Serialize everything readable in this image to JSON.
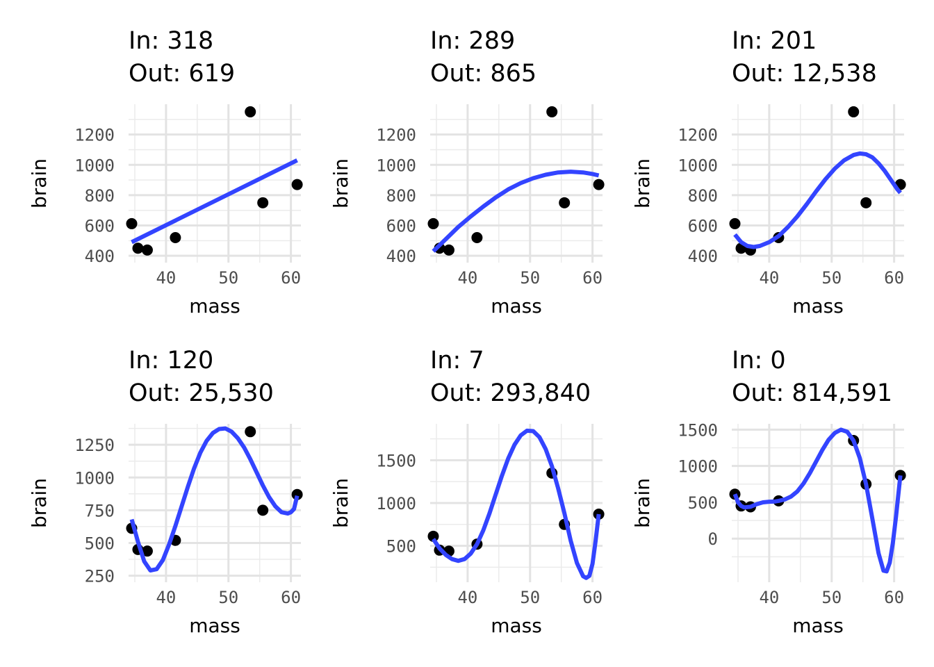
{
  "chart_data": [
    {
      "type": "scatter",
      "title_line1": "In: 318",
      "title_line2": "Out: 619",
      "xlabel": "mass",
      "ylabel": "brain",
      "xlim": [
        34,
        61.6
      ],
      "ylim": [
        355,
        1400
      ],
      "x_ticks": [
        40,
        50,
        60
      ],
      "x_tick_labels": [
        "40",
        "50",
        "60"
      ],
      "y_ticks": [
        400,
        600,
        800,
        1000,
        1200
      ],
      "y_tick_labels": [
        "400",
        "600",
        "800",
        "1000",
        "1200"
      ],
      "grid": true,
      "points": [
        [
          34.5,
          612
        ],
        [
          35.5,
          450
        ],
        [
          37.0,
          438
        ],
        [
          41.5,
          520
        ],
        [
          53.5,
          1350
        ],
        [
          55.5,
          750
        ],
        [
          61.0,
          870
        ]
      ],
      "fit_degree": 1,
      "fit_curve": [
        [
          34.5,
          490
        ],
        [
          61.0,
          1030
        ]
      ]
    },
    {
      "type": "scatter",
      "title_line1": "In: 289",
      "title_line2": "Out: 865",
      "xlabel": "mass",
      "ylabel": "brain",
      "xlim": [
        34,
        61.6
      ],
      "ylim": [
        355,
        1400
      ],
      "x_ticks": [
        40,
        50,
        60
      ],
      "x_tick_labels": [
        "40",
        "50",
        "60"
      ],
      "y_ticks": [
        400,
        600,
        800,
        1000,
        1200
      ],
      "y_tick_labels": [
        "400",
        "600",
        "800",
        "1000",
        "1200"
      ],
      "grid": true,
      "points": [
        [
          34.5,
          612
        ],
        [
          35.5,
          450
        ],
        [
          37.0,
          438
        ],
        [
          41.5,
          520
        ],
        [
          53.5,
          1350
        ],
        [
          55.5,
          750
        ],
        [
          61.0,
          870
        ]
      ],
      "fit_degree": 2,
      "fit_curve": [
        [
          34.5,
          430
        ],
        [
          36.5,
          510
        ],
        [
          38.5,
          590
        ],
        [
          40.5,
          660
        ],
        [
          42.5,
          725
        ],
        [
          44.5,
          785
        ],
        [
          46.5,
          838
        ],
        [
          48.5,
          880
        ],
        [
          50.5,
          912
        ],
        [
          52.5,
          935
        ],
        [
          54.5,
          950
        ],
        [
          56.5,
          955
        ],
        [
          58.5,
          950
        ],
        [
          60.0,
          940
        ],
        [
          61.0,
          930
        ]
      ]
    },
    {
      "type": "scatter",
      "title_line1": "In: 201",
      "title_line2": "Out: 12,538",
      "xlabel": "mass",
      "ylabel": "brain",
      "xlim": [
        34,
        61.6
      ],
      "ylim": [
        355,
        1400
      ],
      "x_ticks": [
        40,
        50,
        60
      ],
      "x_tick_labels": [
        "40",
        "50",
        "60"
      ],
      "y_ticks": [
        400,
        600,
        800,
        1000,
        1200
      ],
      "y_tick_labels": [
        "400",
        "600",
        "800",
        "1000",
        "1200"
      ],
      "grid": true,
      "points": [
        [
          34.5,
          612
        ],
        [
          35.5,
          450
        ],
        [
          37.0,
          438
        ],
        [
          41.5,
          520
        ],
        [
          53.5,
          1350
        ],
        [
          55.5,
          750
        ],
        [
          61.0,
          870
        ]
      ],
      "fit_degree": 3,
      "fit_curve": [
        [
          34.5,
          540
        ],
        [
          35.5,
          490
        ],
        [
          36.5,
          465
        ],
        [
          37.5,
          458
        ],
        [
          38.5,
          465
        ],
        [
          40.0,
          490
        ],
        [
          41.5,
          530
        ],
        [
          43.0,
          590
        ],
        [
          44.5,
          660
        ],
        [
          46.0,
          740
        ],
        [
          47.5,
          825
        ],
        [
          49.0,
          905
        ],
        [
          50.5,
          975
        ],
        [
          52.0,
          1030
        ],
        [
          53.5,
          1065
        ],
        [
          54.5,
          1075
        ],
        [
          55.5,
          1070
        ],
        [
          56.5,
          1050
        ],
        [
          57.5,
          1010
        ],
        [
          58.5,
          960
        ],
        [
          59.5,
          900
        ],
        [
          60.5,
          840
        ],
        [
          61.0,
          815
        ]
      ]
    },
    {
      "type": "scatter",
      "title_line1": "In: 120",
      "title_line2": "Out: 25,530",
      "xlabel": "mass",
      "ylabel": "brain",
      "xlim": [
        34,
        61.6
      ],
      "ylim": [
        200,
        1410
      ],
      "x_ticks": [
        40,
        50,
        60
      ],
      "x_tick_labels": [
        "40",
        "50",
        "60"
      ],
      "y_ticks": [
        250,
        500,
        750,
        1000,
        1250
      ],
      "y_tick_labels": [
        "250",
        "500",
        "750",
        "1000",
        "1250"
      ],
      "grid": true,
      "points": [
        [
          34.5,
          612
        ],
        [
          35.5,
          450
        ],
        [
          37.0,
          438
        ],
        [
          41.5,
          520
        ],
        [
          53.5,
          1350
        ],
        [
          55.5,
          750
        ],
        [
          61.0,
          870
        ]
      ],
      "fit_degree": 4,
      "fit_curve": [
        [
          34.5,
          680
        ],
        [
          35.5,
          510
        ],
        [
          36.5,
          360
        ],
        [
          37.5,
          290
        ],
        [
          38.5,
          300
        ],
        [
          39.5,
          370
        ],
        [
          40.5,
          490
        ],
        [
          41.5,
          630
        ],
        [
          42.5,
          780
        ],
        [
          43.5,
          930
        ],
        [
          44.5,
          1070
        ],
        [
          45.5,
          1190
        ],
        [
          46.5,
          1280
        ],
        [
          47.5,
          1340
        ],
        [
          48.5,
          1370
        ],
        [
          49.5,
          1375
        ],
        [
          50.5,
          1350
        ],
        [
          51.5,
          1300
        ],
        [
          52.5,
          1230
        ],
        [
          53.5,
          1140
        ],
        [
          54.5,
          1040
        ],
        [
          55.5,
          940
        ],
        [
          56.5,
          850
        ],
        [
          57.5,
          780
        ],
        [
          58.5,
          735
        ],
        [
          59.5,
          725
        ],
        [
          60.0,
          735
        ],
        [
          60.5,
          760
        ],
        [
          61.0,
          860
        ]
      ]
    },
    {
      "type": "scatter",
      "title_line1": "In: 7",
      "title_line2": "Out: 293,840",
      "xlabel": "mass",
      "ylabel": "brain",
      "xlim": [
        34,
        61.6
      ],
      "ylim": [
        75,
        1925
      ],
      "x_ticks": [
        40,
        50,
        60
      ],
      "x_tick_labels": [
        "40",
        "50",
        "60"
      ],
      "y_ticks": [
        500,
        1000,
        1500
      ],
      "y_tick_labels": [
        "500",
        "1000",
        "1500"
      ],
      "grid": true,
      "points": [
        [
          34.5,
          612
        ],
        [
          35.5,
          450
        ],
        [
          37.0,
          438
        ],
        [
          41.5,
          520
        ],
        [
          53.5,
          1350
        ],
        [
          55.5,
          750
        ],
        [
          61.0,
          870
        ]
      ],
      "fit_degree": 5,
      "fit_curve": [
        [
          34.5,
          580
        ],
        [
          35.5,
          470
        ],
        [
          36.5,
          395
        ],
        [
          37.5,
          345
        ],
        [
          38.5,
          325
        ],
        [
          39.5,
          345
        ],
        [
          40.5,
          410
        ],
        [
          41.5,
          520
        ],
        [
          42.5,
          680
        ],
        [
          43.5,
          880
        ],
        [
          44.5,
          1100
        ],
        [
          45.5,
          1320
        ],
        [
          46.5,
          1520
        ],
        [
          47.5,
          1680
        ],
        [
          48.5,
          1790
        ],
        [
          49.5,
          1845
        ],
        [
          50.5,
          1840
        ],
        [
          51.5,
          1770
        ],
        [
          52.5,
          1630
        ],
        [
          53.5,
          1430
        ],
        [
          54.5,
          1170
        ],
        [
          55.5,
          880
        ],
        [
          56.5,
          560
        ],
        [
          57.5,
          300
        ],
        [
          58.5,
          145
        ],
        [
          59.0,
          125
        ],
        [
          59.5,
          150
        ],
        [
          60.0,
          290
        ],
        [
          60.5,
          560
        ],
        [
          61.0,
          870
        ]
      ]
    },
    {
      "type": "scatter",
      "title_line1": "In: 0",
      "title_line2": "Out: 814,591",
      "xlabel": "mass",
      "ylabel": "brain",
      "xlim": [
        34,
        61.6
      ],
      "ylim": [
        -600,
        1580
      ],
      "x_ticks": [
        40,
        50,
        60
      ],
      "x_tick_labels": [
        "40",
        "50",
        "60"
      ],
      "y_ticks": [
        0,
        500,
        1000,
        1500
      ],
      "y_tick_labels": [
        "0",
        "500",
        "1000",
        "1500"
      ],
      "grid": true,
      "points": [
        [
          34.5,
          612
        ],
        [
          35.5,
          450
        ],
        [
          37.0,
          438
        ],
        [
          41.5,
          520
        ],
        [
          53.5,
          1350
        ],
        [
          55.5,
          750
        ],
        [
          61.0,
          870
        ]
      ],
      "fit_degree": 6,
      "fit_curve": [
        [
          34.5,
          612
        ],
        [
          35.0,
          500
        ],
        [
          35.5,
          450
        ],
        [
          36.0,
          430
        ],
        [
          37.0,
          438
        ],
        [
          38.0,
          475
        ],
        [
          39.0,
          500
        ],
        [
          40.0,
          508
        ],
        [
          41.0,
          512
        ],
        [
          41.5,
          520
        ],
        [
          42.5,
          540
        ],
        [
          43.5,
          580
        ],
        [
          44.5,
          650
        ],
        [
          45.5,
          760
        ],
        [
          46.5,
          900
        ],
        [
          47.5,
          1060
        ],
        [
          48.5,
          1220
        ],
        [
          49.5,
          1360
        ],
        [
          50.5,
          1455
        ],
        [
          51.5,
          1500
        ],
        [
          52.5,
          1470
        ],
        [
          53.5,
          1350
        ],
        [
          54.5,
          1110
        ],
        [
          55.5,
          750
        ],
        [
          56.5,
          280
        ],
        [
          57.5,
          -200
        ],
        [
          58.3,
          -440
        ],
        [
          58.8,
          -450
        ],
        [
          59.3,
          -330
        ],
        [
          59.8,
          -60
        ],
        [
          60.3,
          300
        ],
        [
          61.0,
          870
        ]
      ]
    }
  ]
}
